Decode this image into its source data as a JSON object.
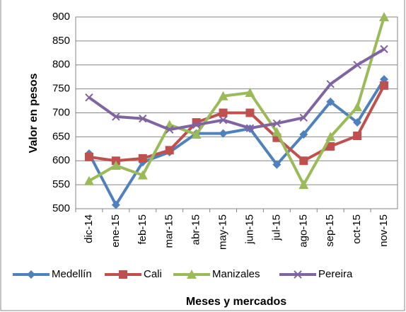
{
  "chart_data": {
    "type": "line",
    "x_label": "Meses y mercados",
    "y_label": "Valor en pesos",
    "categories": [
      "dic-14",
      "ene-15",
      "feb-15",
      "mar-15",
      "abr-15",
      "may-15",
      "jun-15",
      "jul-15",
      "ago-15",
      "sep-15",
      "oct-15",
      "nov-15"
    ],
    "series": [
      {
        "name": "Medellín",
        "color": "#4f81bd",
        "marker": "diamond",
        "values": [
          615,
          508,
          597,
          618,
          657,
          657,
          667,
          592,
          655,
          723,
          680,
          770
        ]
      },
      {
        "name": "Cali",
        "color": "#c0504d",
        "marker": "square",
        "values": [
          608,
          600,
          605,
          622,
          680,
          700,
          700,
          648,
          600,
          630,
          652,
          757
        ]
      },
      {
        "name": "Manizales",
        "color": "#9bbb59",
        "marker": "triangle",
        "values": [
          558,
          590,
          570,
          675,
          655,
          735,
          742,
          660,
          550,
          650,
          712,
          900
        ]
      },
      {
        "name": "Pereira",
        "color": "#8064a2",
        "marker": "x",
        "values": [
          732,
          692,
          688,
          665,
          675,
          685,
          668,
          678,
          690,
          760,
          800,
          833
        ]
      }
    ],
    "ylim": [
      500,
      900
    ],
    "yticks": [
      500,
      550,
      600,
      650,
      700,
      750,
      800,
      850,
      900
    ],
    "grid": true,
    "legend": "bottom"
  }
}
